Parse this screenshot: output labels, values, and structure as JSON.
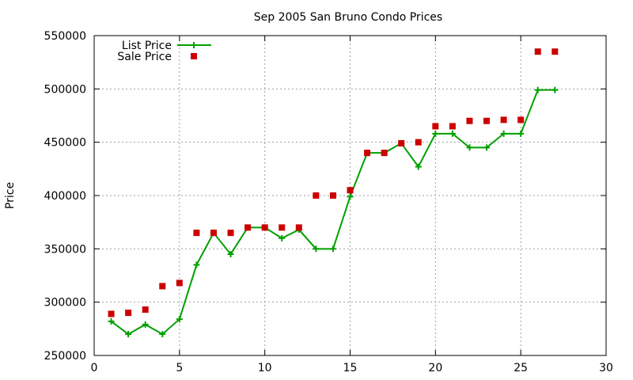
{
  "chart_data": {
    "type": "line",
    "title": "Sep 2005 San Bruno Condo Prices",
    "xlabel": "",
    "ylabel": "Price",
    "xlim": [
      0,
      30
    ],
    "ylim": [
      250000,
      550000
    ],
    "xticks": [
      0,
      5,
      10,
      15,
      20,
      25,
      30
    ],
    "yticks": [
      250000,
      300000,
      350000,
      400000,
      450000,
      500000,
      550000
    ],
    "grid": true,
    "legend_position": "top-left",
    "series": [
      {
        "name": "List Price",
        "style": "line-cross",
        "color": "#00a000",
        "x": [
          1,
          2,
          3,
          4,
          5,
          6,
          7,
          8,
          9,
          10,
          11,
          12,
          13,
          14,
          15,
          16,
          17,
          18,
          19,
          20,
          21,
          22,
          23,
          24,
          25,
          26,
          27
        ],
        "values": [
          282000,
          270000,
          279000,
          270000,
          284000,
          335000,
          365000,
          345000,
          370000,
          370000,
          360000,
          368000,
          350000,
          350000,
          399000,
          440000,
          440000,
          449000,
          427000,
          458000,
          458000,
          445000,
          445000,
          458000,
          458000,
          499000,
          499000
        ]
      },
      {
        "name": "Sale Price",
        "style": "square",
        "color": "#cc0000",
        "x": [
          1,
          2,
          3,
          4,
          5,
          6,
          7,
          8,
          9,
          10,
          11,
          12,
          13,
          14,
          15,
          16,
          17,
          18,
          19,
          20,
          21,
          22,
          23,
          24,
          25,
          26,
          27
        ],
        "values": [
          289000,
          290000,
          293000,
          315000,
          318000,
          365000,
          365000,
          365000,
          370000,
          370000,
          370000,
          370000,
          400000,
          400000,
          405000,
          440000,
          440000,
          449000,
          450000,
          465000,
          465000,
          470000,
          470000,
          471000,
          471000,
          535000,
          535000
        ]
      }
    ]
  }
}
